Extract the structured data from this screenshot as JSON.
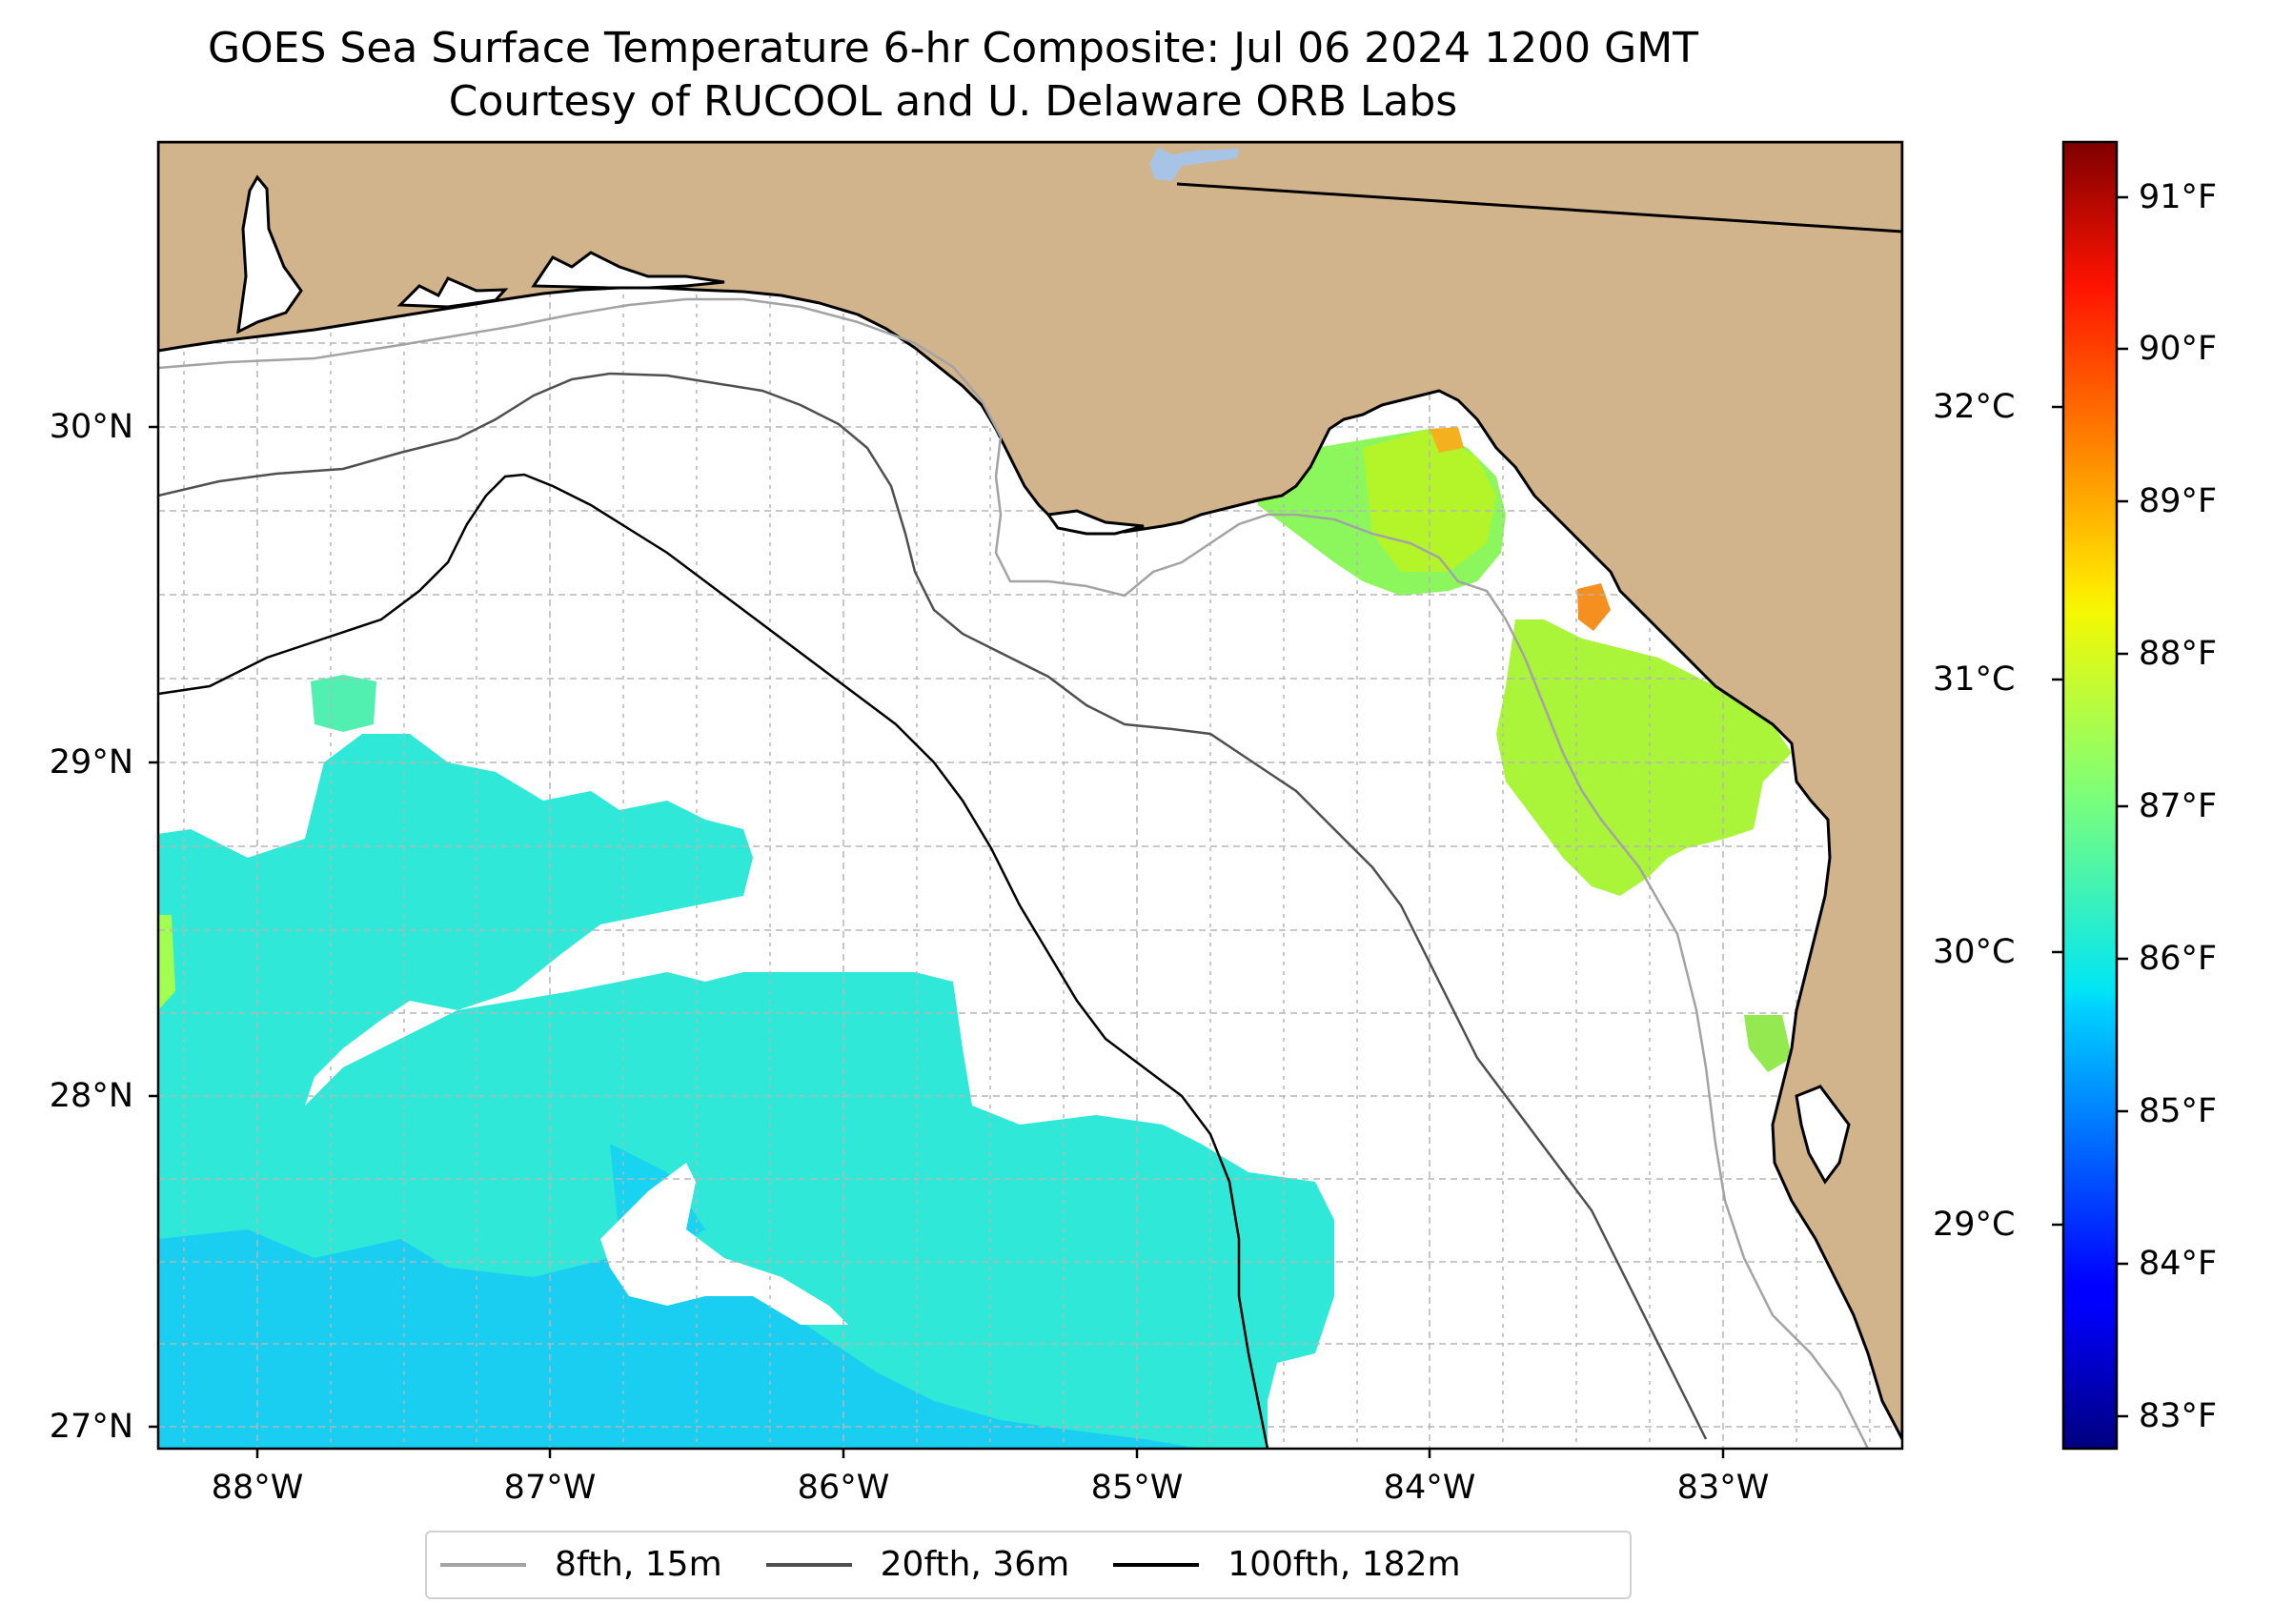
{
  "title": {
    "line1": "GOES Sea Surface Temperature 6-hr Composite: Jul 06 2024 1200 GMT",
    "line2": "Courtesy of RUCOOL and U. Delaware ORB Labs"
  },
  "map": {
    "extent": {
      "lon": [
        -88.33,
        -82.4
      ],
      "lat": [
        26.93,
        30.85
      ]
    },
    "land_color": "#d2b48c",
    "water_color": "#ffffff",
    "lake_color": "#a7c4e6",
    "gridlines": "dashed",
    "lat_ticks": [
      {
        "value": 30,
        "label": "30°N"
      },
      {
        "value": 29,
        "label": "29°N"
      },
      {
        "value": 28,
        "label": "28°N"
      },
      {
        "value": 27,
        "label": "27°N"
      }
    ],
    "lon_ticks": [
      {
        "value": -88,
        "label": "88°W"
      },
      {
        "value": -87,
        "label": "87°W"
      },
      {
        "value": -86,
        "label": "86°W"
      },
      {
        "value": -85,
        "label": "85°W"
      },
      {
        "value": -84,
        "label": "84°W"
      },
      {
        "value": -83,
        "label": "83°W"
      }
    ]
  },
  "colorbar": {
    "colormap": "jet",
    "range_f": [
      82.7,
      91.4
    ],
    "fahrenheit_ticks": [
      {
        "value": 91,
        "label": "91°F"
      },
      {
        "value": 90,
        "label": "90°F"
      },
      {
        "value": 89,
        "label": "89°F"
      },
      {
        "value": 88,
        "label": "88°F"
      },
      {
        "value": 87,
        "label": "87°F"
      },
      {
        "value": 86,
        "label": "86°F"
      },
      {
        "value": 85,
        "label": "85°F"
      },
      {
        "value": 84,
        "label": "84°F"
      },
      {
        "value": 83,
        "label": "83°F"
      }
    ],
    "celsius_ticks": [
      {
        "value": 32,
        "label": "32°C"
      },
      {
        "value": 31,
        "label": "31°C"
      },
      {
        "value": 30,
        "label": "30°C"
      },
      {
        "value": 29,
        "label": "29°C"
      }
    ]
  },
  "legend": {
    "placement": "bottom-center",
    "items": [
      {
        "label": "8fth, 15m",
        "color": "#a3a3a3"
      },
      {
        "label": "20fth, 36m",
        "color": "#4f4f4f"
      },
      {
        "label": "100fth, 182m",
        "color": "#000000"
      }
    ]
  }
}
